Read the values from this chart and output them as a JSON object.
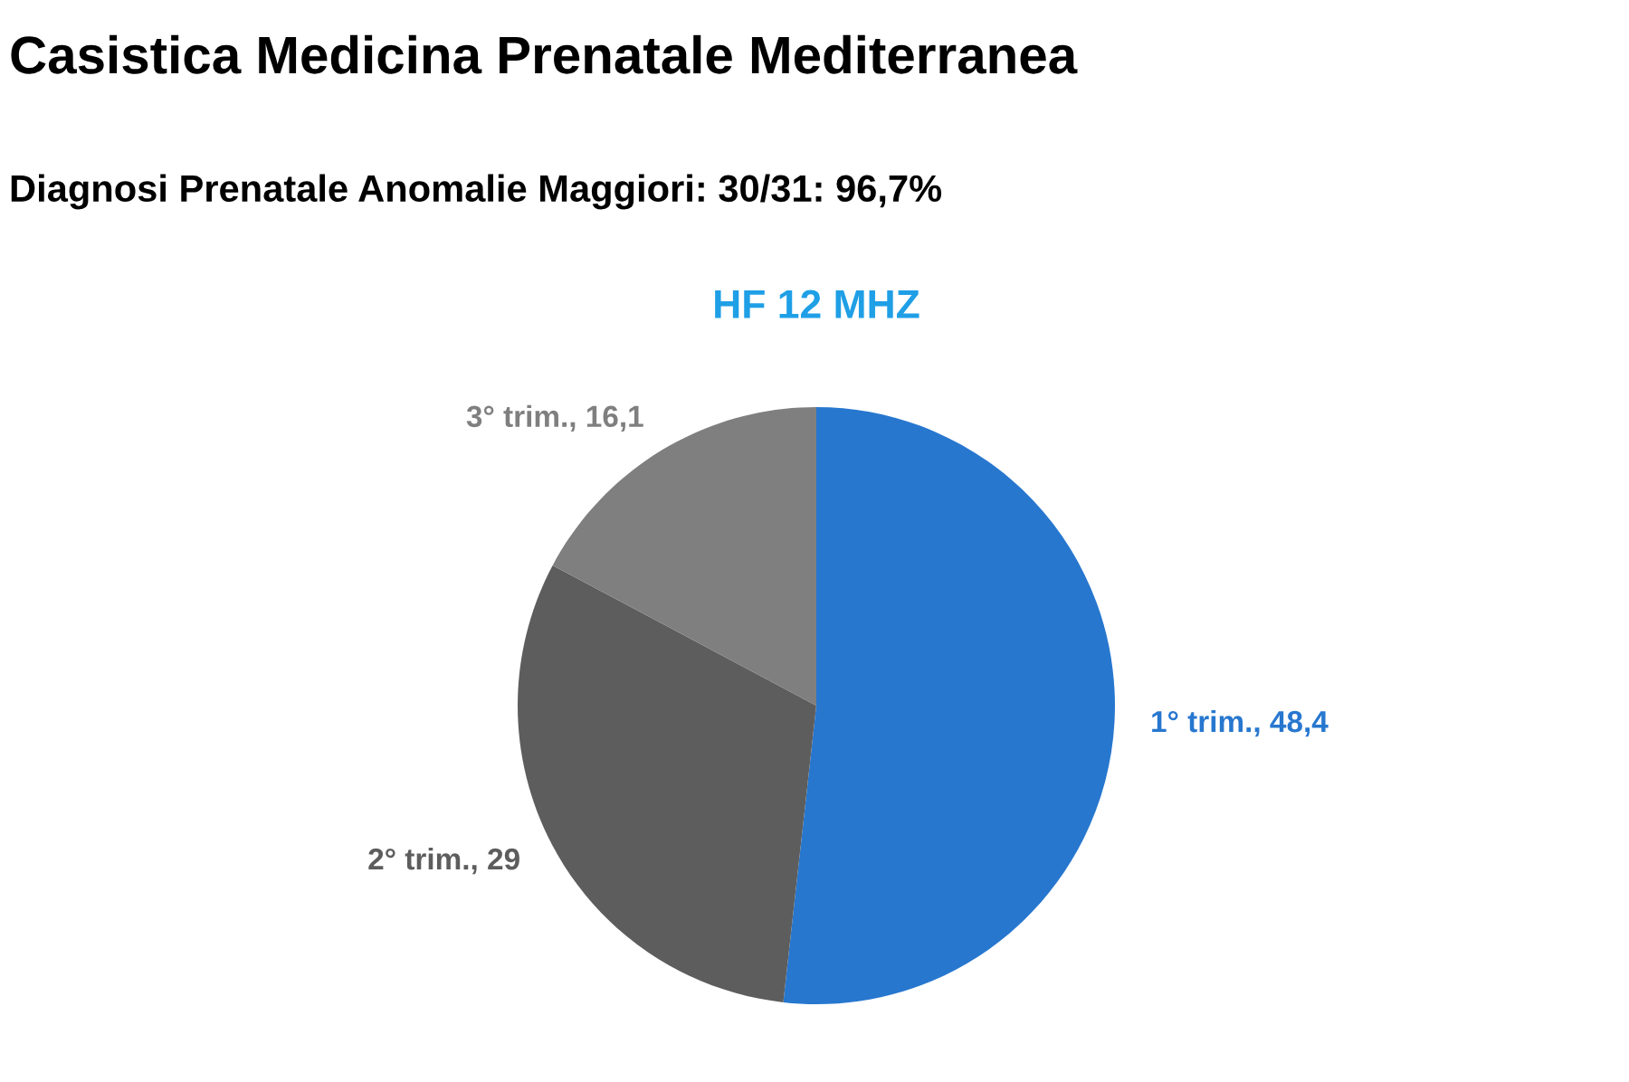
{
  "chart_data": {
    "type": "pie",
    "title": "Casistica Medicina Prenatale Mediterranea",
    "subtitle": "Diagnosi Prenatale Anomalie Maggiori: 30/31: 96,7%",
    "annotations": [
      "HF 12 MHZ"
    ],
    "categories": [
      "1° trim.",
      "2° trim.",
      "3° trim."
    ],
    "values": [
      48.4,
      29,
      16.1
    ],
    "value_labels": [
      "48,4",
      "29",
      "16,1"
    ],
    "colors": [
      "#2777cf",
      "#5d5d5d",
      "#7f7f7f"
    ]
  }
}
